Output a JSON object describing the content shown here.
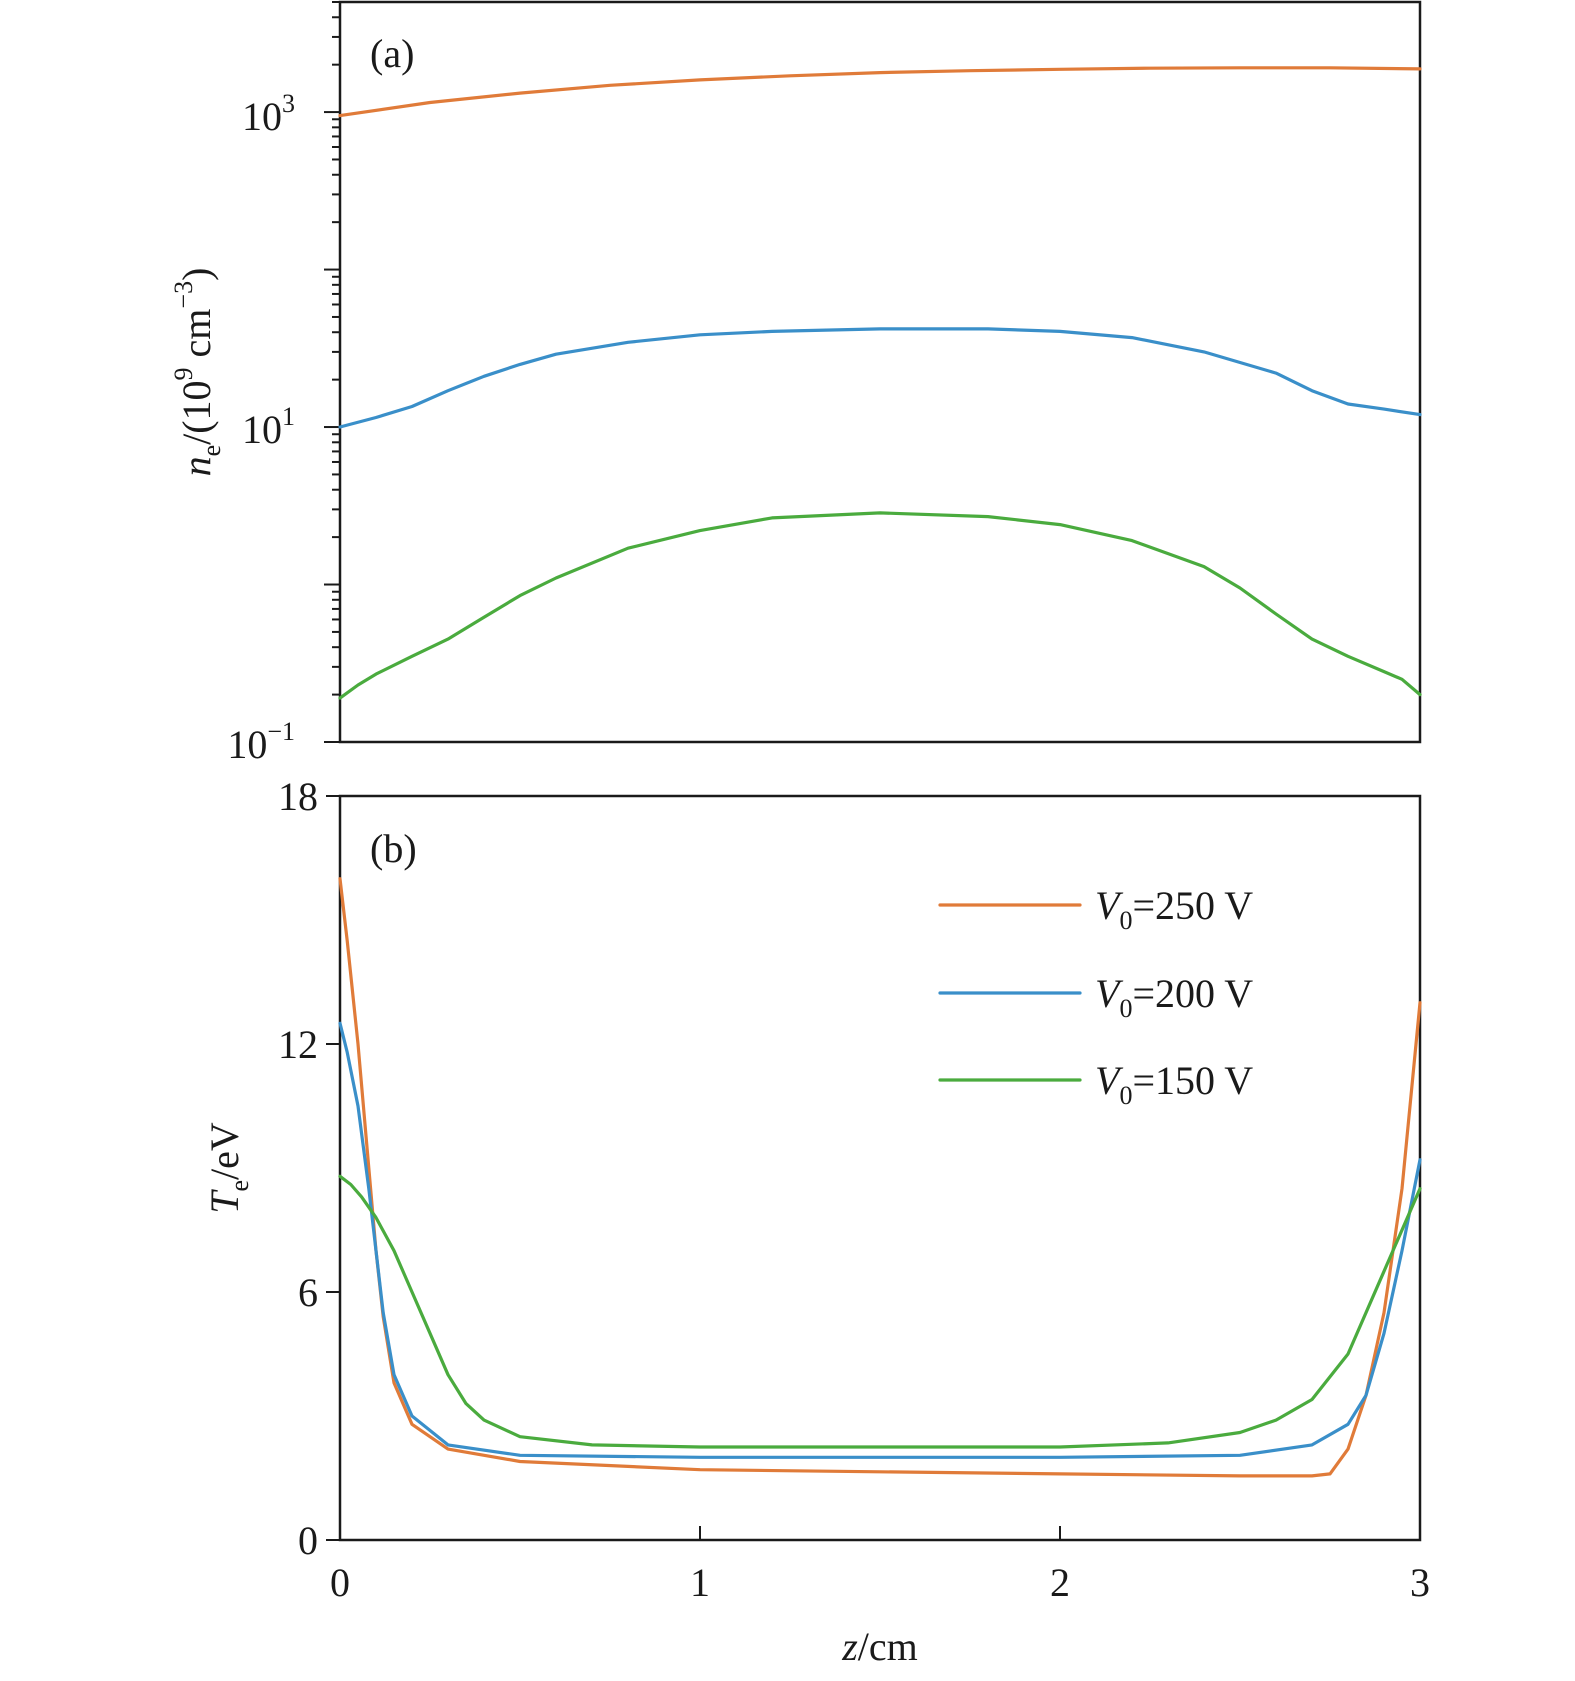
{
  "colors": {
    "v250": "#e07b39",
    "v200": "#3a8fc9",
    "v150": "#4aab3e",
    "axes": "#1a1a1a"
  },
  "chart_data": [
    {
      "panel_label": "(a)",
      "type": "line",
      "yscale": "log",
      "xlim": [
        0,
        3
      ],
      "ylim": [
        0.1,
        5000
      ],
      "ylabel_main": "n",
      "ylabel_sub": "e",
      "ylabel_unit_prefix": "/(10",
      "ylabel_unit_sup": "9",
      "ylabel_unit_mid": " cm",
      "ylabel_unit_sup2": "−3",
      "ylabel_unit_suffix": ")",
      "ytick_labels": [
        {
          "value": 0.1,
          "base": "10",
          "exp": "−1"
        },
        {
          "value": 10,
          "base": "10",
          "exp": "1"
        },
        {
          "value": 1000,
          "base": "10",
          "exp": "3"
        }
      ],
      "series": [
        {
          "key": "v250",
          "x": [
            0,
            0.25,
            0.5,
            0.75,
            1.0,
            1.25,
            1.5,
            1.75,
            2.0,
            2.25,
            2.5,
            2.75,
            3.0
          ],
          "y": [
            950,
            1150,
            1320,
            1480,
            1600,
            1700,
            1780,
            1830,
            1870,
            1900,
            1910,
            1910,
            1880
          ]
        },
        {
          "key": "v200",
          "x": [
            0,
            0.1,
            0.2,
            0.3,
            0.4,
            0.5,
            0.6,
            0.8,
            1.0,
            1.2,
            1.5,
            1.8,
            2.0,
            2.2,
            2.4,
            2.6,
            2.7,
            2.8,
            2.9,
            3.0
          ],
          "y": [
            10,
            11.5,
            13.5,
            17,
            21,
            25,
            29,
            34.5,
            38.5,
            40.5,
            42,
            42,
            40.5,
            37,
            30,
            22,
            17,
            14,
            13,
            12
          ]
        },
        {
          "key": "v150",
          "x": [
            0,
            0.05,
            0.1,
            0.2,
            0.3,
            0.4,
            0.5,
            0.6,
            0.8,
            1.0,
            1.2,
            1.5,
            1.8,
            2.0,
            2.2,
            2.4,
            2.5,
            2.6,
            2.7,
            2.8,
            2.9,
            2.95,
            3.0
          ],
          "y": [
            0.19,
            0.23,
            0.27,
            0.35,
            0.45,
            0.62,
            0.85,
            1.1,
            1.7,
            2.2,
            2.65,
            2.85,
            2.7,
            2.4,
            1.9,
            1.3,
            0.95,
            0.65,
            0.45,
            0.35,
            0.28,
            0.25,
            0.2
          ]
        }
      ]
    },
    {
      "panel_label": "(b)",
      "type": "line",
      "yscale": "linear",
      "xlim": [
        0,
        3
      ],
      "ylim": [
        0,
        18
      ],
      "xticks": [
        0,
        1,
        2,
        3
      ],
      "yticks": [
        0,
        6,
        12,
        18
      ],
      "xlabel_var": "z",
      "xlabel_unit": "/cm",
      "ylabel_main": "T",
      "ylabel_sub": "e",
      "ylabel_unit": "/eV",
      "legend_position": "top-right",
      "series": [
        {
          "key": "v250",
          "name": "=250 V",
          "name_prefix": "V",
          "name_sub": "0",
          "x": [
            0,
            0.02,
            0.05,
            0.08,
            0.1,
            0.12,
            0.15,
            0.2,
            0.3,
            0.5,
            1.0,
            1.5,
            2.0,
            2.5,
            2.7,
            2.75,
            2.8,
            2.85,
            2.9,
            2.95,
            3.0
          ],
          "y": [
            16,
            14.5,
            12,
            9,
            7,
            5.4,
            3.8,
            2.8,
            2.2,
            1.9,
            1.7,
            1.65,
            1.6,
            1.55,
            1.55,
            1.6,
            2.2,
            3.5,
            5.5,
            8.5,
            13
          ]
        },
        {
          "key": "v200",
          "name": "=200 V",
          "name_prefix": "V",
          "name_sub": "0",
          "x": [
            0,
            0.02,
            0.05,
            0.08,
            0.1,
            0.12,
            0.15,
            0.2,
            0.3,
            0.5,
            1.0,
            1.5,
            2.0,
            2.5,
            2.7,
            2.8,
            2.85,
            2.9,
            2.95,
            3.0
          ],
          "y": [
            12.5,
            11.8,
            10.5,
            8.5,
            7,
            5.5,
            4,
            3,
            2.3,
            2.05,
            2.0,
            2.0,
            2.0,
            2.05,
            2.3,
            2.8,
            3.5,
            5,
            7,
            9.2
          ]
        },
        {
          "key": "v150",
          "name": "=150 V",
          "name_prefix": "V",
          "name_sub": "0",
          "x": [
            0,
            0.03,
            0.06,
            0.1,
            0.15,
            0.2,
            0.25,
            0.3,
            0.35,
            0.4,
            0.5,
            0.7,
            1.0,
            1.5,
            2.0,
            2.3,
            2.5,
            2.6,
            2.7,
            2.8,
            2.9,
            3.0
          ],
          "y": [
            8.8,
            8.6,
            8.3,
            7.8,
            7,
            6,
            5,
            4,
            3.3,
            2.9,
            2.5,
            2.3,
            2.25,
            2.25,
            2.25,
            2.35,
            2.6,
            2.9,
            3.4,
            4.5,
            6.5,
            8.5
          ]
        }
      ]
    }
  ]
}
